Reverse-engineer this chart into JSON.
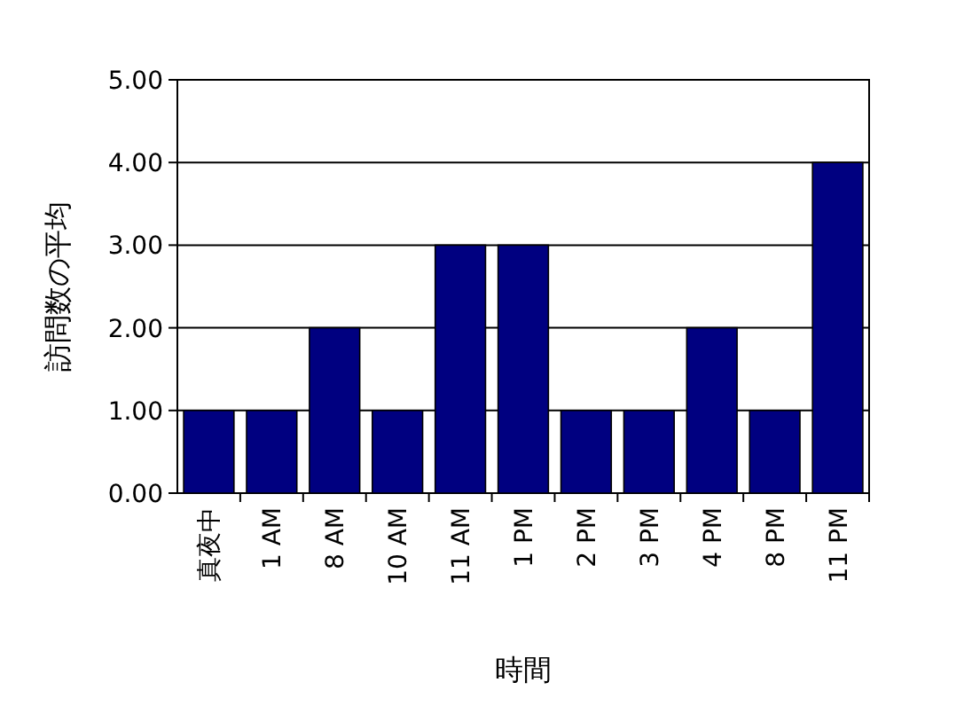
{
  "chart_data": {
    "type": "bar",
    "xlabel": "時間",
    "ylabel": "訪問数の平均",
    "categories": [
      "真夜中",
      "1 AM",
      "8 AM",
      "10 AM",
      "11 AM",
      "1 PM",
      "2 PM",
      "3 PM",
      "4 PM",
      "8 PM",
      "11 PM"
    ],
    "values": [
      1,
      1,
      2,
      1,
      3,
      3,
      1,
      1,
      2,
      1,
      4
    ],
    "color": "#000080",
    "ylim": [
      0,
      5
    ],
    "yticks": [
      {
        "value": 0,
        "label": "0.00"
      },
      {
        "value": 1,
        "label": "1.00"
      },
      {
        "value": 2,
        "label": "2.00"
      },
      {
        "value": 3,
        "label": "3.00"
      },
      {
        "value": 4,
        "label": "4.00"
      },
      {
        "value": 5,
        "label": "5.00"
      }
    ],
    "grid": "y"
  }
}
